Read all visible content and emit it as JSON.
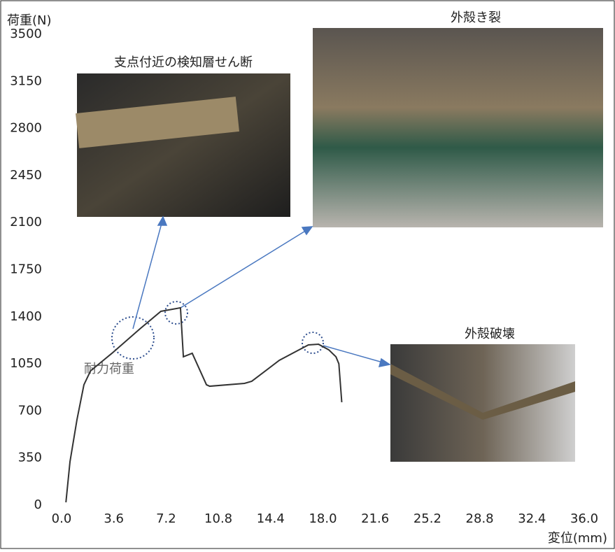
{
  "chart_data": {
    "type": "line",
    "y_label": "荷重(N)",
    "x_label": "変位(mm)",
    "annotation": "耐力荷重",
    "inset_captions": [
      "支点付近の検知層せん断",
      "外殻き裂",
      "外殻破壊"
    ],
    "xlim": [
      0,
      36
    ],
    "ylim": [
      0,
      3500
    ],
    "xticks": [
      {
        "value": 0,
        "label": "0.0"
      },
      3.6,
      7.2,
      10.8,
      14.4,
      {
        "value": 18,
        "label": "18.0"
      },
      21.6,
      25.2,
      28.8,
      32.4,
      {
        "value": 36,
        "label": "36.0"
      }
    ],
    "yticks": [
      0,
      350,
      700,
      1050,
      1400,
      1750,
      2100,
      2450,
      2800,
      3150,
      3500
    ],
    "series": [
      {
        "color": "#333333",
        "x": [
          0.3,
          0.58,
          1.06,
          1.54,
          2.0,
          3.47,
          5.4,
          6.84,
          8.19,
          8.39,
          9.0,
          9.98,
          10.2,
          12.6,
          13.1,
          15.0,
          17.0,
          17.7,
          18.4,
          18.9,
          19.1,
          19.3
        ],
        "values": [
          0,
          302,
          614,
          874,
          978,
          1108,
          1290,
          1420,
          1446,
          1082,
          1108,
          874,
          863,
          884,
          900,
          1056,
          1170,
          1175,
          1134,
          1082,
          1030,
          744
        ]
      }
    ]
  }
}
